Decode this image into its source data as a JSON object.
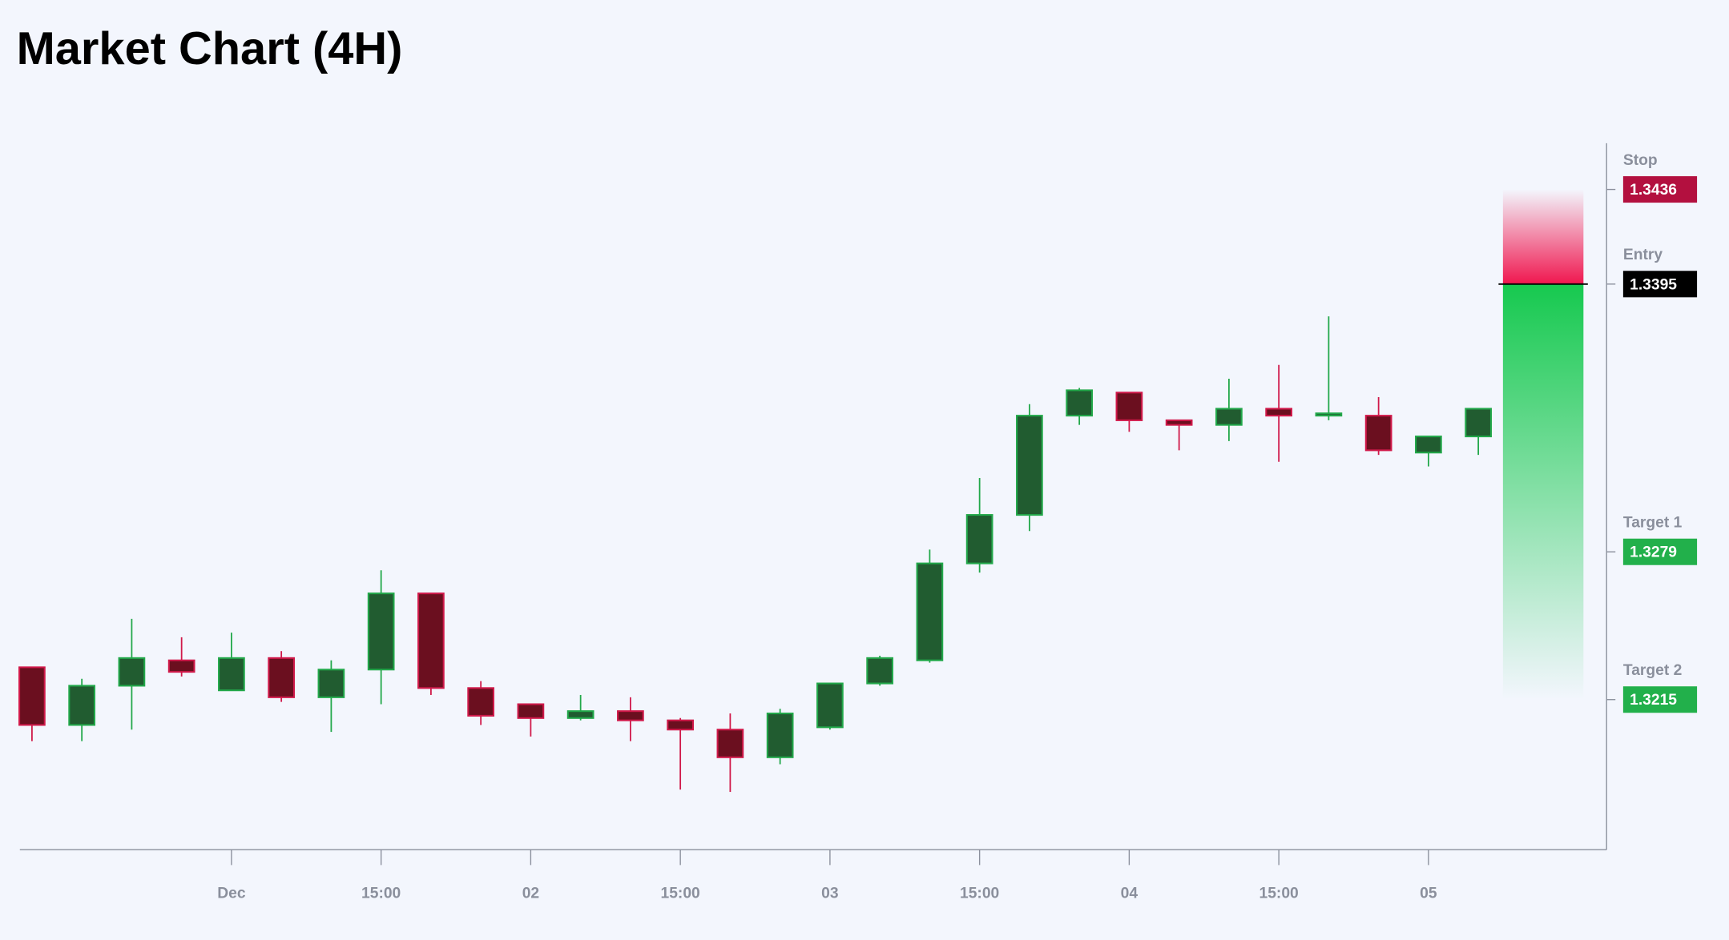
{
  "chart_data": {
    "type": "candlestick",
    "title": "Market Chart (4H)",
    "categories": [
      null,
      null,
      null,
      null,
      "Dec",
      null,
      null,
      "15:00",
      null,
      null,
      "02",
      null,
      null,
      "15:00",
      null,
      null,
      "03",
      null,
      null,
      "15:00",
      null,
      null,
      "04",
      null,
      null,
      "15:00",
      null,
      null,
      "05",
      null
    ],
    "open": [
      1.3229,
      1.3204,
      1.3221,
      1.3232,
      1.3219,
      1.3233,
      1.3216,
      1.3228,
      1.3261,
      1.322,
      1.3213,
      1.3207,
      1.321,
      1.3206,
      1.3202,
      1.319,
      1.3203,
      1.3222,
      1.3232,
      1.3274,
      1.3295,
      1.3338,
      1.3348,
      1.3336,
      1.3334,
      1.3341,
      1.3338,
      1.3338,
      1.3322,
      1.3329
    ],
    "high": [
      1.3229,
      1.3224,
      1.325,
      1.3242,
      1.3244,
      1.3236,
      1.3232,
      1.3271,
      1.3261,
      1.3223,
      1.3213,
      1.3217,
      1.3216,
      1.3207,
      1.3209,
      1.3211,
      1.3222,
      1.3234,
      1.328,
      1.3311,
      1.3343,
      1.335,
      1.3348,
      1.3336,
      1.3354,
      1.336,
      1.3381,
      1.3346,
      1.3329,
      1.3341
    ],
    "low": [
      1.3197,
      1.3197,
      1.3202,
      1.3225,
      1.3219,
      1.3214,
      1.3201,
      1.3213,
      1.3217,
      1.3204,
      1.3199,
      1.3206,
      1.3197,
      1.3176,
      1.3175,
      1.3187,
      1.3202,
      1.3221,
      1.3231,
      1.327,
      1.3288,
      1.3334,
      1.3331,
      1.3323,
      1.3327,
      1.3318,
      1.3336,
      1.3321,
      1.3316,
      1.3321
    ],
    "close": [
      1.3204,
      1.3221,
      1.3233,
      1.3227,
      1.3233,
      1.3216,
      1.3228,
      1.3261,
      1.322,
      1.3208,
      1.3207,
      1.321,
      1.3206,
      1.3202,
      1.319,
      1.3209,
      1.3222,
      1.3233,
      1.3274,
      1.3295,
      1.3338,
      1.3349,
      1.3336,
      1.3334,
      1.3341,
      1.3338,
      1.3339,
      1.3323,
      1.3329,
      1.3341
    ],
    "up_color": "#22a84a",
    "down_color": "#d0194a",
    "ylim": [
      1.315,
      1.3456
    ],
    "levels": [
      {
        "name": "Stop",
        "value": 1.3436,
        "color": "#b3103f"
      },
      {
        "name": "Entry",
        "value": 1.3395,
        "color": "#000000"
      },
      {
        "name": "Target 1",
        "value": 1.3279,
        "color": "#22b04b"
      },
      {
        "name": "Target 2",
        "value": 1.3215,
        "color": "#22b04b"
      }
    ]
  }
}
